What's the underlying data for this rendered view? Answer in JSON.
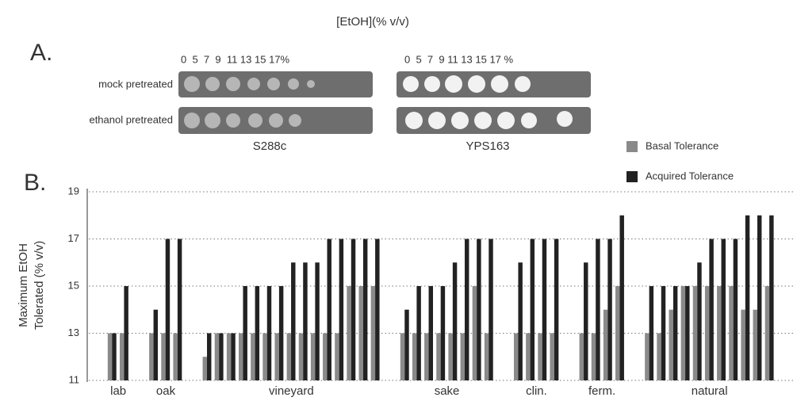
{
  "panel_a": {
    "label": "A.",
    "heading": "[EtOH](% v/v)",
    "left_concentrations": "0  5  7  9  11 13 15 17%",
    "right_concentrations": "0  5  7  9 11 13 15 17 %",
    "rows": [
      "mock pretreated",
      "ethanol pretreated"
    ],
    "strains": [
      "S288c",
      "YPS163"
    ]
  },
  "chart_data": {
    "type": "grouped-bar",
    "panel_label": "B.",
    "ylabel": [
      "Maximum EtOH",
      "Tolerated (% v/v)"
    ],
    "ylim": [
      11,
      19
    ],
    "yticks": [
      11,
      13,
      15,
      17,
      19
    ],
    "grid": true,
    "legend": "top-right",
    "series": [
      {
        "name": "Basal Tolerance",
        "color": "#8a8a8a"
      },
      {
        "name": "Acquired Tolerance",
        "color": "#222222"
      }
    ],
    "groups": [
      {
        "label": "lab",
        "basal": [
          13,
          13
        ],
        "acquired": [
          13,
          15
        ]
      },
      {
        "label": "oak",
        "basal": [
          13,
          13,
          13
        ],
        "acquired": [
          14,
          17,
          17
        ]
      },
      {
        "label": "vineyard",
        "basal": [
          12,
          13,
          13,
          13,
          13,
          13,
          13,
          13,
          13,
          13,
          13,
          13,
          15,
          15,
          15
        ],
        "acquired": [
          13,
          13,
          13,
          15,
          15,
          15,
          15,
          16,
          16,
          16,
          17,
          17,
          17,
          17,
          17
        ]
      },
      {
        "label": "sake",
        "basal": [
          13,
          13,
          13,
          13,
          13,
          13,
          15,
          13
        ],
        "acquired": [
          14,
          15,
          15,
          15,
          16,
          17,
          17,
          17
        ]
      },
      {
        "label": "clin.",
        "basal": [
          13,
          13,
          13,
          13
        ],
        "acquired": [
          16,
          17,
          17,
          17
        ]
      },
      {
        "label": "ferm.",
        "basal": [
          13,
          13,
          14,
          15
        ],
        "acquired": [
          16,
          17,
          17,
          18
        ]
      },
      {
        "label": "natural",
        "basal": [
          13,
          13,
          14,
          15,
          15,
          15,
          15,
          15,
          14,
          14,
          15
        ],
        "acquired": [
          15,
          15,
          15,
          15,
          16,
          17,
          17,
          17,
          18,
          18,
          18
        ]
      }
    ]
  }
}
